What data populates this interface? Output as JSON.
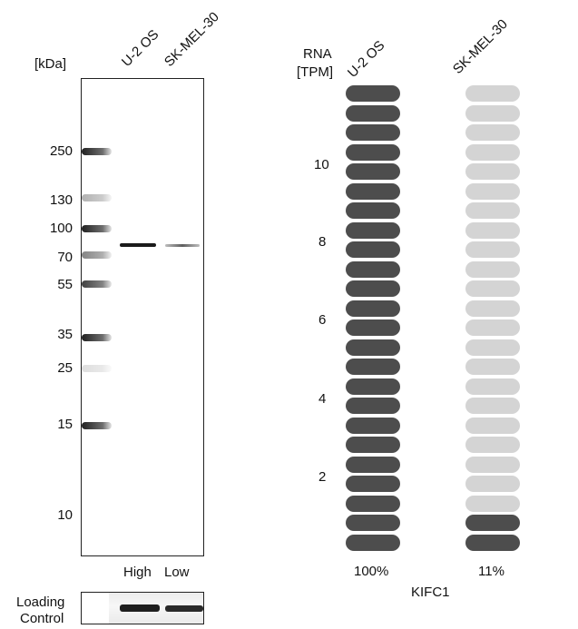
{
  "western_blot": {
    "unit_label": "[kDa]",
    "lanes": [
      "U-2 OS",
      "SK-MEL-30"
    ],
    "mw_markers": [
      "250",
      "130",
      "100",
      "70",
      "55",
      "35",
      "25",
      "15",
      "10"
    ],
    "expression_labels": [
      "High",
      "Low"
    ],
    "loading_control_label": [
      "Loading",
      "Control"
    ]
  },
  "rna": {
    "title_lines": [
      "RNA",
      "[TPM]"
    ],
    "cell_lines": [
      "U-2 OS",
      "SK-MEL-30"
    ],
    "axis_ticks": [
      "10",
      "8",
      "6",
      "4",
      "2"
    ],
    "percentages": [
      "100%",
      "11%"
    ],
    "gene": "KIFC1",
    "total_segments": 24,
    "filled_segments": [
      24,
      2
    ],
    "colors": {
      "filled": "#4d4d4d",
      "empty": "#d4d4d4",
      "band": "#1a1a1a"
    }
  }
}
